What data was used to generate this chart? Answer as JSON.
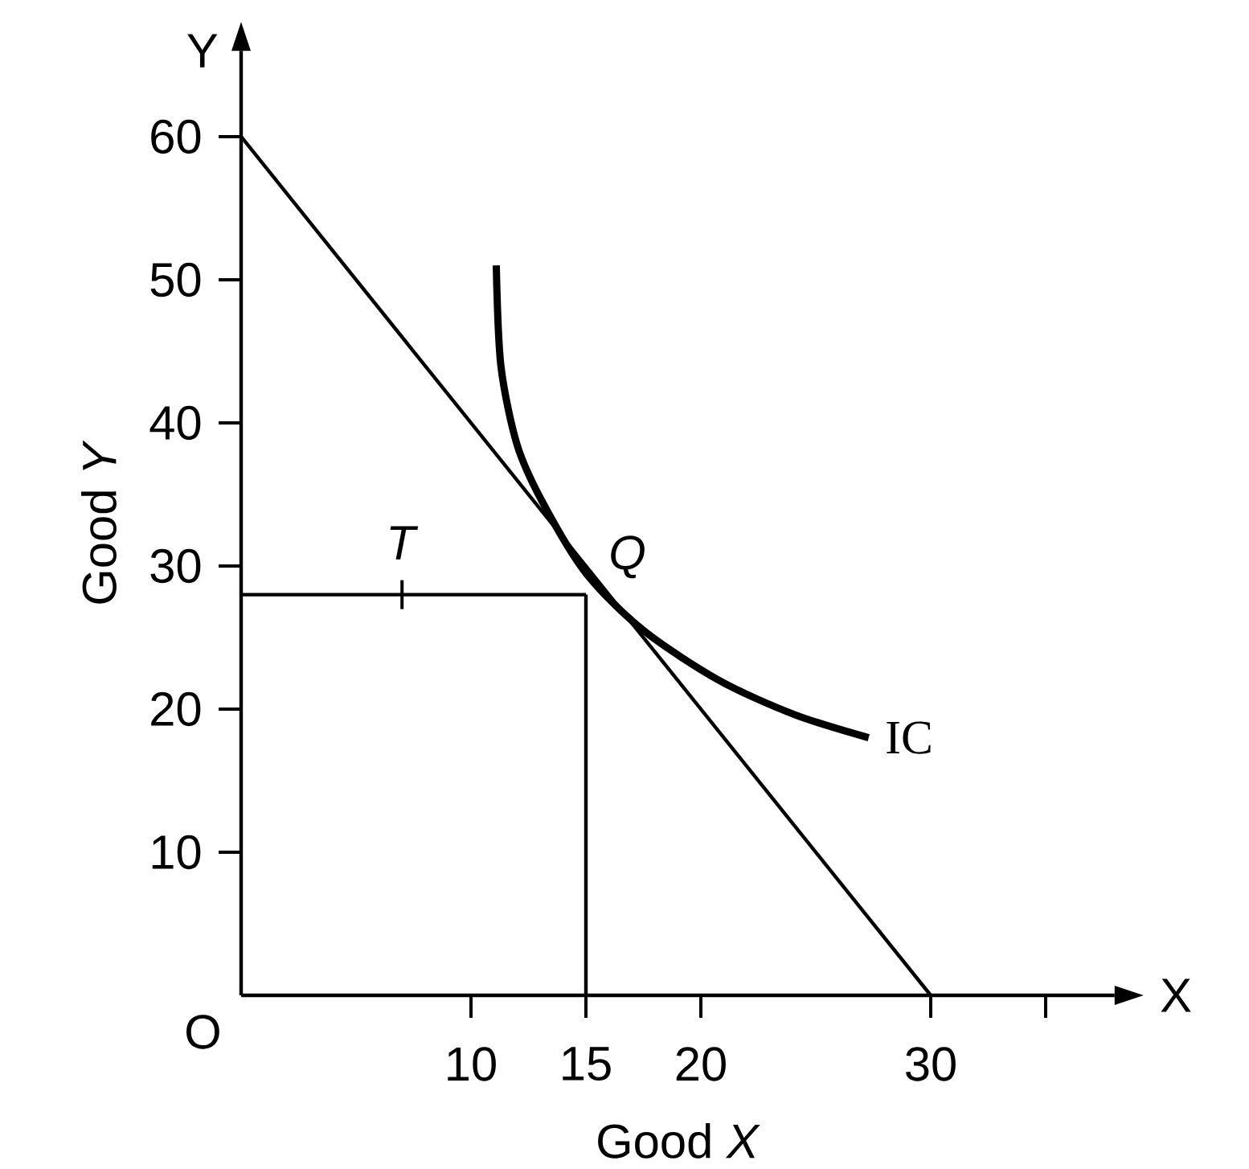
{
  "chart_data": {
    "type": "line",
    "xlabel": "Good *X*",
    "ylabel": "Good *Y*",
    "xlim": [
      0,
      38
    ],
    "ylim": [
      0,
      66
    ],
    "xticks": [
      10,
      15,
      20,
      30,
      {
        "value": 35,
        "label": null
      }
    ],
    "yticks": [
      10,
      20,
      30,
      40,
      50,
      60
    ],
    "series": [
      {
        "color": "#000000",
        "x": [
          0,
          30
        ],
        "values": [
          60,
          0
        ]
      },
      {
        "color": "#000000",
        "x": [
          0,
          15
        ],
        "values": [
          28,
          28
        ]
      },
      {
        "color": "#000000",
        "x": [
          15,
          15
        ],
        "values": [
          28,
          0
        ]
      },
      {
        "name": "IC",
        "color": "#000000",
        "x": [
          11.1,
          11.3,
          12.0,
          13.1,
          15,
          17.5,
          20.8,
          24.1,
          27.3
        ],
        "values": [
          51.0,
          44.0,
          38.5,
          34.5,
          29.5,
          25.5,
          22.0,
          19.6,
          18.0
        ]
      }
    ],
    "annotations": [
      "Y",
      "X",
      "O",
      {
        "text": "*Q*",
        "x": 15,
        "y": 28
      },
      {
        "text": "*T*",
        "x": 7,
        "y": 28
      }
    ],
    "grid": false,
    "legend": false,
    "marker": "none",
    "line_style": "solid"
  }
}
